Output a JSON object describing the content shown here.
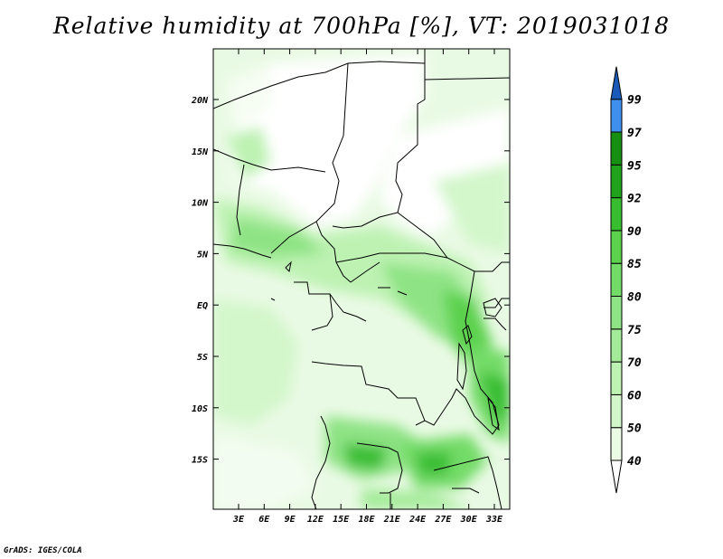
{
  "title": "Relative humidity at 700hPa [%], VT: 2019031018",
  "credit": "GrADS: IGES/COLA",
  "lat_ticks": [
    "20N",
    "15N",
    "10N",
    "5N",
    "EQ",
    "5S",
    "10S",
    "15S"
  ],
  "lon_ticks": [
    "3E",
    "6E",
    "9E",
    "12E",
    "15E",
    "18E",
    "21E",
    "24E",
    "27E",
    "30E",
    "33E"
  ],
  "colorbar": {
    "levels": [
      "40",
      "50",
      "60",
      "70",
      "75",
      "80",
      "85",
      "90",
      "92",
      "95",
      "97",
      "99"
    ],
    "colors": [
      "#ebfbe6",
      "#d3f7cb",
      "#bdf2b2",
      "#a3eb98",
      "#8ee384",
      "#73db67",
      "#5bd14e",
      "#39bd30",
      "#1fa11b",
      "#168f12",
      "#3f8fef",
      "#1c6fdb",
      "#1a5ab8"
    ]
  }
}
